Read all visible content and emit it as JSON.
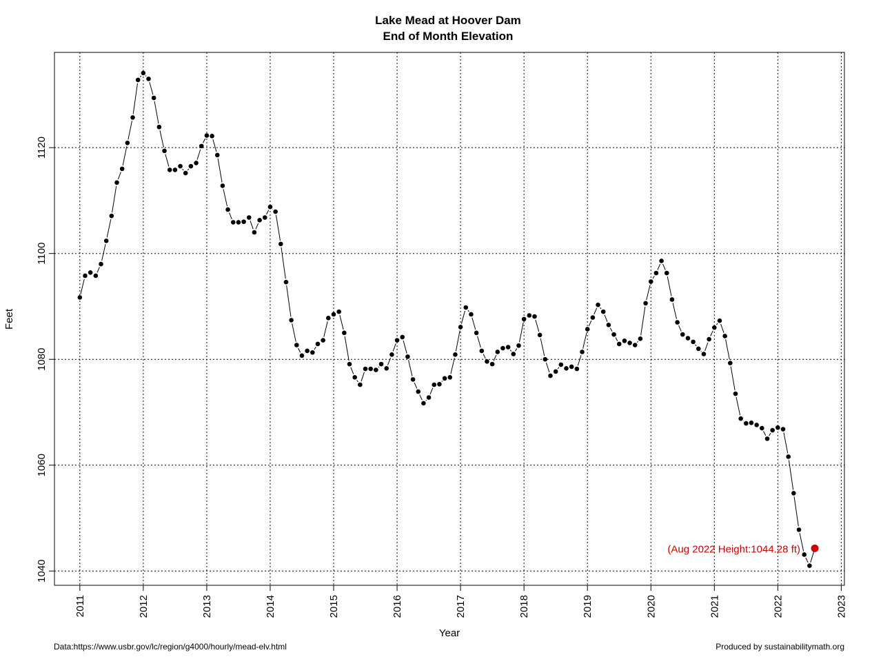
{
  "chart_data": {
    "type": "line",
    "title": "Lake Mead at Hoover Dam",
    "subtitle": "End of Month Elevation",
    "xlabel": "Year",
    "ylabel": "Feet",
    "xlim": [
      2010.6,
      2023.05
    ],
    "ylim": [
      1037.3,
      1138.0
    ],
    "x_ticks": [
      "2011",
      "2012",
      "2013",
      "2014",
      "2015",
      "2016",
      "2017",
      "2018",
      "2019",
      "2020",
      "2021",
      "2022",
      "2023"
    ],
    "y_ticks": [
      "1040",
      "1060",
      "1080",
      "1100",
      "1120"
    ],
    "grid": true,
    "start_month": "Jan 2011",
    "values": [
      1091.7,
      1095.8,
      1096.4,
      1095.8,
      1098.0,
      1102.4,
      1107.1,
      1113.4,
      1116.0,
      1120.9,
      1125.7,
      1132.8,
      1134.1,
      1133.0,
      1129.4,
      1123.9,
      1119.4,
      1115.8,
      1115.8,
      1116.5,
      1115.2,
      1116.5,
      1117.1,
      1120.3,
      1122.3,
      1122.2,
      1118.6,
      1112.8,
      1108.3,
      1105.9,
      1105.9,
      1106.0,
      1106.8,
      1104.0,
      1106.3,
      1106.8,
      1108.8,
      1107.9,
      1101.8,
      1094.6,
      1087.4,
      1082.7,
      1080.7,
      1081.6,
      1081.3,
      1082.9,
      1083.6,
      1087.8,
      1088.5,
      1089.0,
      1085.0,
      1079.1,
      1076.6,
      1075.2,
      1078.2,
      1078.2,
      1078.0,
      1079.1,
      1078.3,
      1080.9,
      1083.6,
      1084.2,
      1080.5,
      1076.2,
      1073.9,
      1071.7,
      1072.8,
      1075.2,
      1075.3,
      1076.4,
      1076.6,
      1080.9,
      1086.1,
      1089.8,
      1088.5,
      1085.0,
      1081.6,
      1079.6,
      1079.1,
      1081.4,
      1082.1,
      1082.3,
      1081.0,
      1082.6,
      1087.6,
      1088.3,
      1088.1,
      1084.6,
      1080.0,
      1076.9,
      1077.7,
      1079.0,
      1078.3,
      1078.6,
      1078.2,
      1081.4,
      1085.7,
      1087.9,
      1090.3,
      1089.0,
      1086.5,
      1084.7,
      1082.9,
      1083.5,
      1083.1,
      1082.7,
      1083.9,
      1090.6,
      1094.7,
      1096.3,
      1098.6,
      1096.3,
      1091.3,
      1087.0,
      1084.7,
      1084.0,
      1083.3,
      1082.0,
      1081.0,
      1083.8,
      1086.0,
      1087.3,
      1084.4,
      1079.3,
      1073.5,
      1068.8,
      1067.9,
      1068.0,
      1067.6,
      1067.0,
      1065.0,
      1066.6,
      1067.1,
      1066.8,
      1061.6,
      1054.7,
      1047.8,
      1043.1,
      1041.0,
      1044.28
    ],
    "highlight": {
      "label": "(Aug 2022 Height:1044.28 ft)",
      "value": 1044.28,
      "color": "#cc0000"
    },
    "point_color": "#000000"
  },
  "footer": {
    "source": "Data:https://www.usbr.gov/lc/region/g4000/hourly/mead-elv.html",
    "credit": "Produced by sustainabilitymath.org"
  }
}
